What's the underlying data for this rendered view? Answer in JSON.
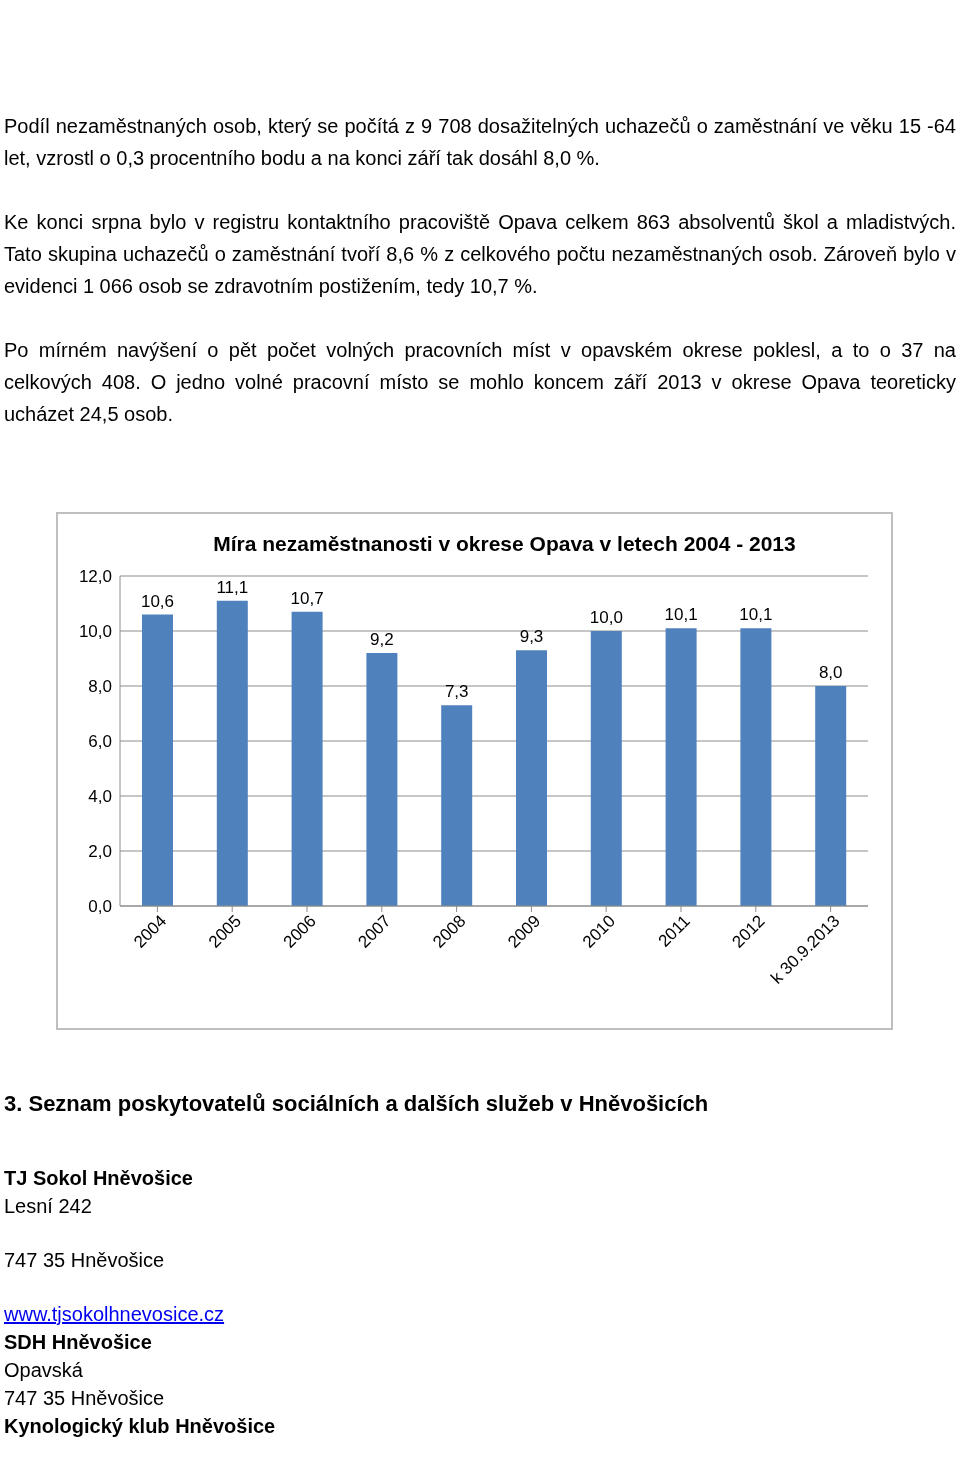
{
  "chart_data": {
    "type": "bar",
    "title": "Míra nezaměstnanosti v okrese Opava v letech 2004 - 2013",
    "categories": [
      "2004",
      "2005",
      "2006",
      "2007",
      "2008",
      "2009",
      "2010",
      "2011",
      "2012",
      "k 30.9.2013"
    ],
    "values": [
      10.6,
      11.1,
      10.7,
      9.2,
      7.3,
      9.3,
      10.0,
      10.1,
      10.1,
      8.0
    ],
    "value_labels": [
      "10,6",
      "11,1",
      "10,7",
      "9,2",
      "7,3",
      "9,3",
      "10,0",
      "10,1",
      "10,1",
      "8,0"
    ],
    "color": "#4f81bd",
    "ylim": [
      0,
      12
    ],
    "yticks": [
      {
        "value": 0,
        "label": "0,0"
      },
      {
        "value": 2,
        "label": "2,0"
      },
      {
        "value": 4,
        "label": "4,0"
      },
      {
        "value": 6,
        "label": "6,0"
      },
      {
        "value": 8,
        "label": "8,0"
      },
      {
        "value": 10,
        "label": "10,0"
      },
      {
        "value": 12,
        "label": "12,0"
      }
    ],
    "grid": "y",
    "legend": false,
    "annotations": [
      "Podíl nezaměstnaných osob, který se počítá z 9 708 dosažitelných uchazečů o zaměstnání ve věku 15 -64 let, vzrostl o 0,3 procentního bodu a na konci září tak dosáhl 8,0 %.",
      "Ke konci srpna bylo v registru kontaktního pracoviště Opava celkem 863 absolventů škol a mladistvých. Tato skupina uchazečů o zaměstnání tvoří 8,6 % z celkového počtu nezaměstnaných osob. Zároveň bylo v evidenci 1 066 osob se zdravotním postižením, tedy 10,7 %.",
      "Po mírném navýšení o pět počet volných pracovních míst v opavském okrese poklesl, a to o 37 na celkových 408. O jedno volné pracovní místo se mohlo koncem září 2013 v okrese Opava teoreticky ucházet 24,5 osob.",
      "3. Seznam poskytovatelů sociálních a dalších služeb v Hněvošicích",
      "TJ Sokol Hněvošice",
      "Lesní 242",
      "747 35 Hněvošice",
      "www.tjsokolhnevosice.cz",
      "SDH Hněvošice",
      "Opavská",
      "747 35 Hněvošice",
      "Kynologický klub Hněvošice"
    ]
  }
}
